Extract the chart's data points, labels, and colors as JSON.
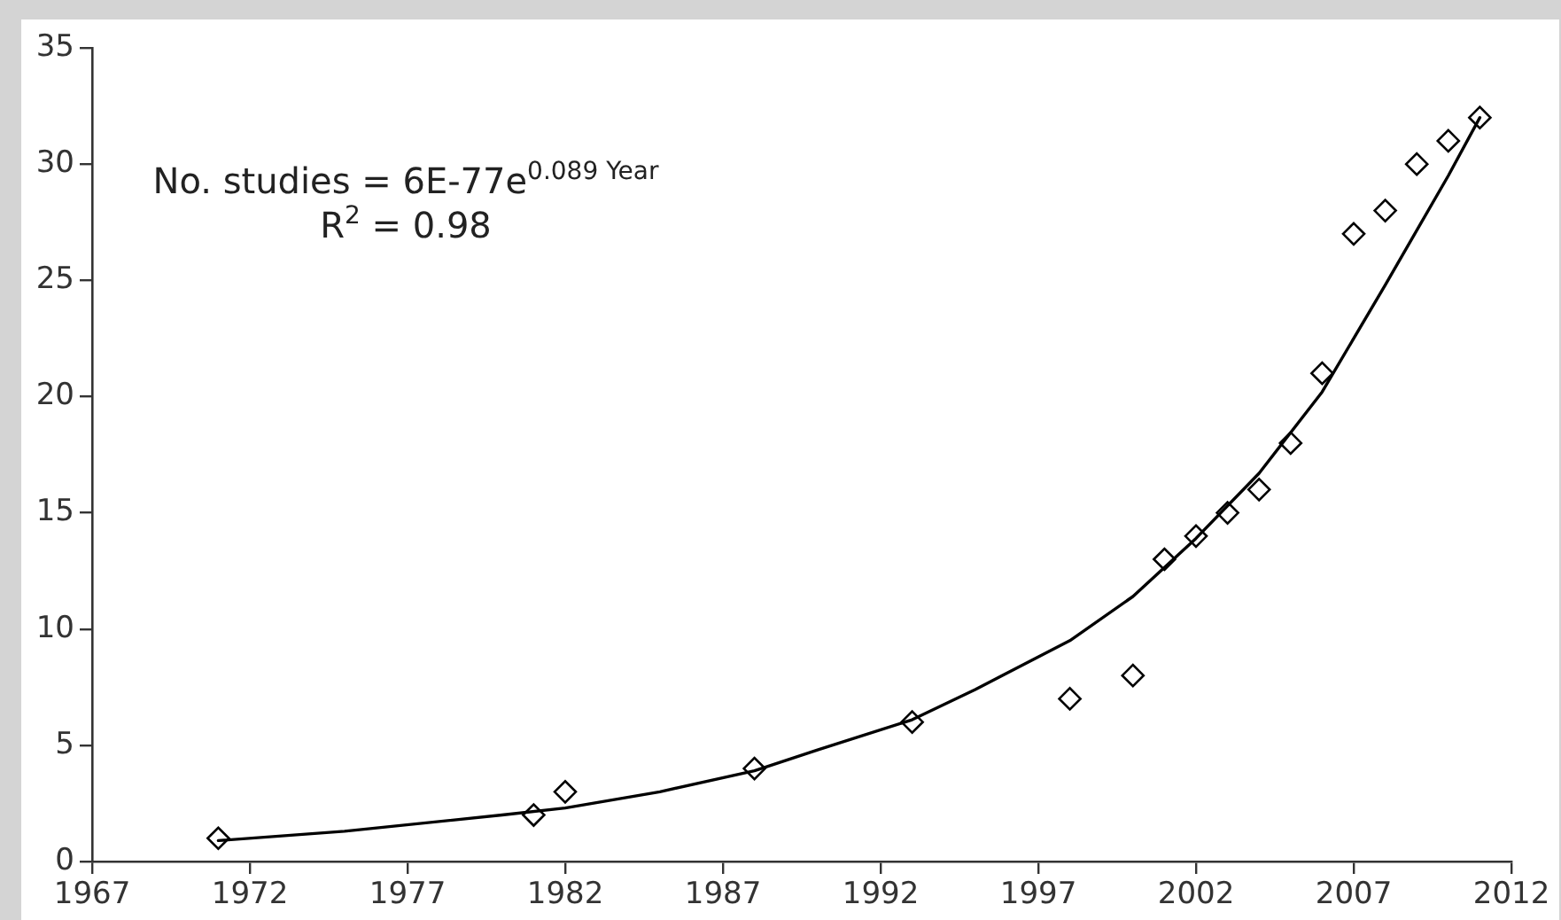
{
  "chart_data": {
    "type": "scatter",
    "annotations": [
      "No. studies = 6E-77e$^{0.089 Year}$",
      "R$^{2}$ = 0.98"
    ],
    "xlim": [
      1967,
      2012
    ],
    "xticks": [
      1967,
      1972,
      1977,
      1982,
      1987,
      1992,
      1997,
      2002,
      2007,
      2012
    ],
    "ylim": [
      0,
      35
    ],
    "yticks": [
      0,
      5,
      10,
      15,
      20,
      25,
      30,
      35
    ],
    "grid": false,
    "legend": false,
    "marker": "diamond",
    "series": [
      {
        "color": "#000000",
        "x": [
          1971,
          1981,
          1982,
          1988,
          1993,
          1998,
          2000,
          2001,
          2002,
          2003,
          2004,
          2005,
          2006,
          2007,
          2008,
          2009,
          2010,
          2011
        ],
        "values": [
          1,
          2,
          3,
          4,
          6,
          7,
          8,
          13,
          14,
          15,
          16,
          18,
          21,
          27,
          28,
          30,
          31,
          32
        ]
      },
      {
        "type": "line",
        "color": "#000000",
        "marker": "none",
        "x": [
          1971,
          1975,
          1980,
          1982,
          1985,
          1988,
          1990,
          1993,
          1995,
          1998,
          2000,
          2002,
          2004,
          2006,
          2008,
          2010,
          2011
        ],
        "values": [
          0.9,
          1.3,
          2.0,
          2.3,
          3.0,
          3.9,
          4.8,
          6.1,
          7.4,
          9.5,
          11.4,
          13.9,
          16.7,
          20.2,
          24.8,
          29.5,
          32
        ]
      }
    ]
  }
}
